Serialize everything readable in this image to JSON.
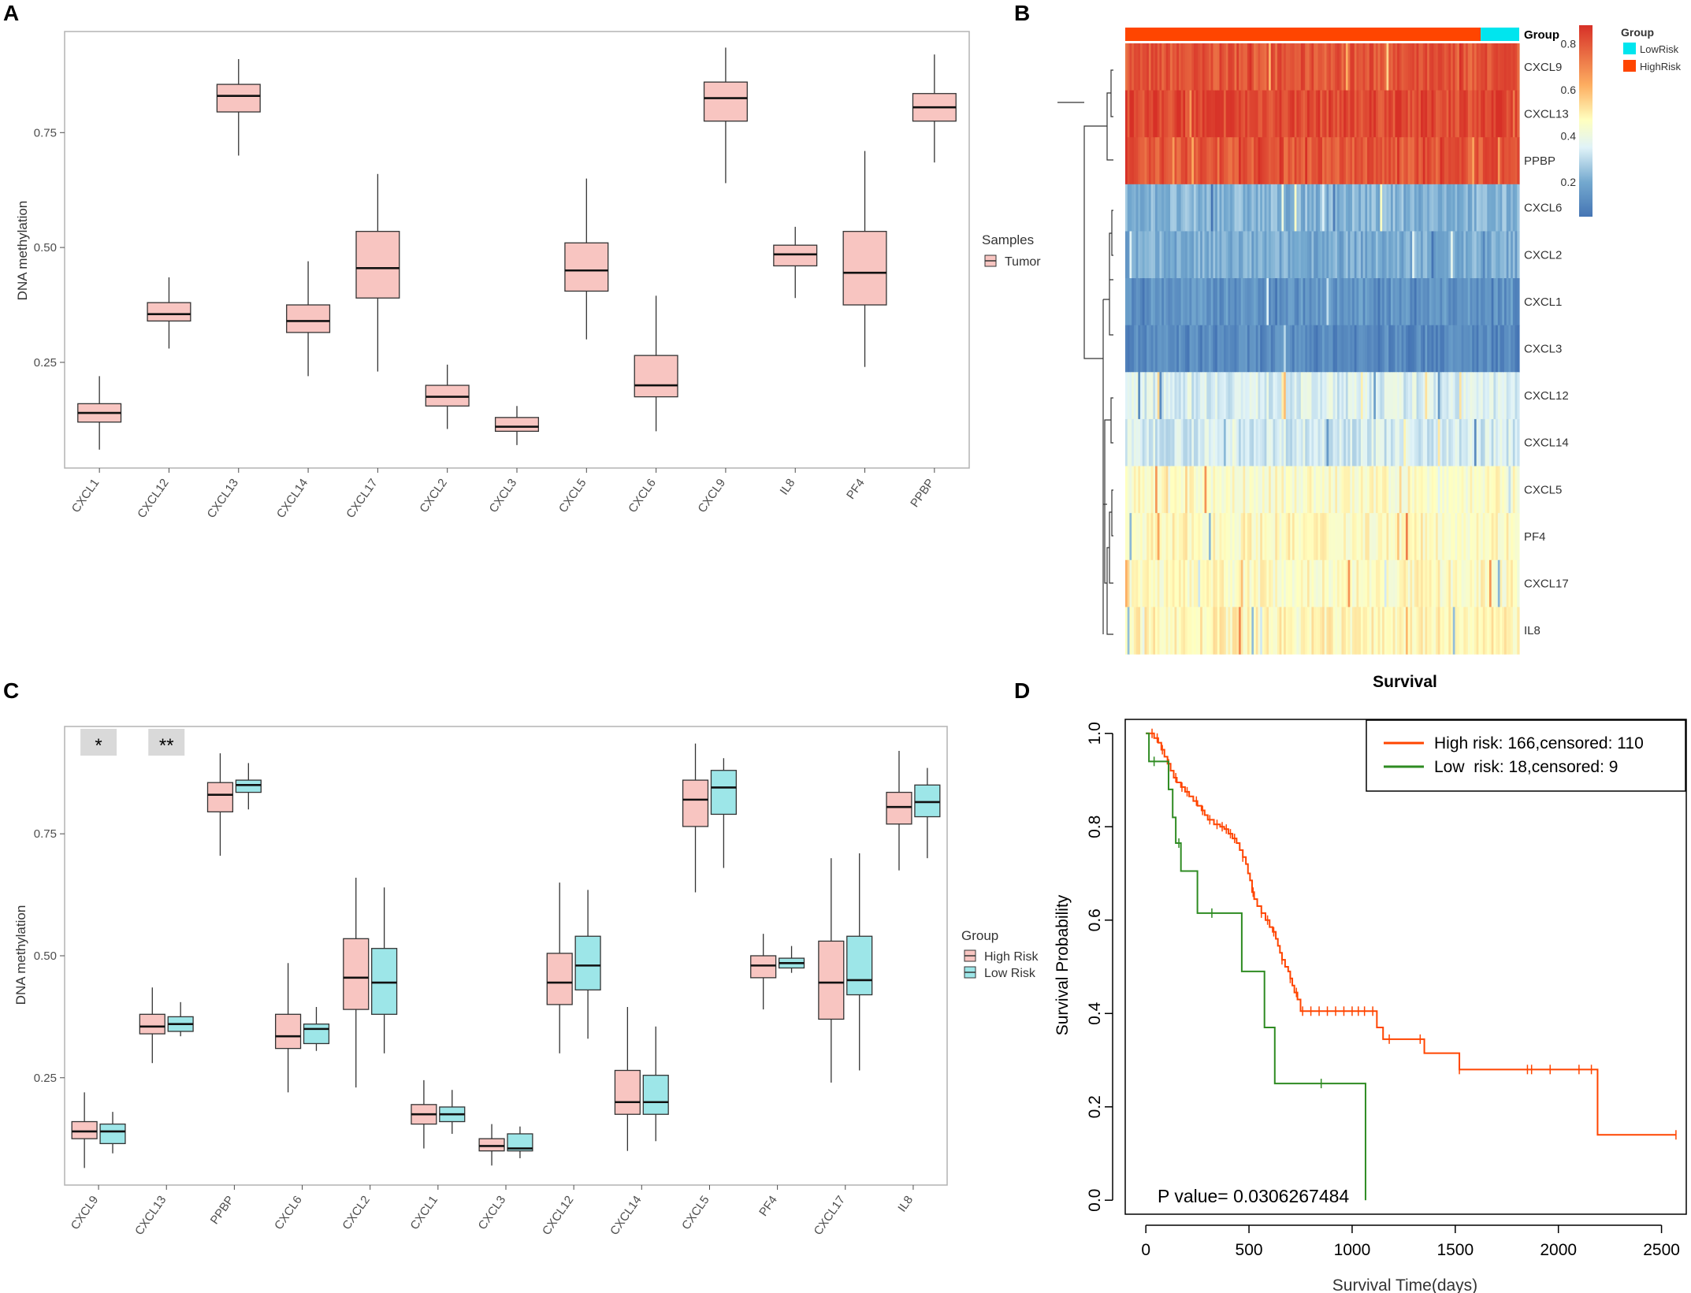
{
  "panels": {
    "A": {
      "letter": "A",
      "chart_data": {
        "type": "boxplot",
        "ylabel": "DNA methylation",
        "ylim": [
          0.02,
          0.97
        ],
        "yticks": [
          0.25,
          0.5,
          0.75
        ],
        "ytick_labels": [
          "0.25",
          "0.50",
          "0.75"
        ],
        "categories": [
          "CXCL1",
          "CXCL12",
          "CXCL13",
          "CXCL14",
          "CXCL17",
          "CXCL2",
          "CXCL3",
          "CXCL5",
          "CXCL6",
          "CXCL9",
          "IL8",
          "PF4",
          "PPBP"
        ],
        "series": [
          {
            "name": "Tumor",
            "color": "#f8c5c1",
            "boxes": [
              {
                "min": 0.06,
                "q1": 0.12,
                "median": 0.14,
                "q3": 0.16,
                "max": 0.22
              },
              {
                "min": 0.28,
                "q1": 0.34,
                "median": 0.355,
                "q3": 0.38,
                "max": 0.435
              },
              {
                "min": 0.7,
                "q1": 0.795,
                "median": 0.83,
                "q3": 0.855,
                "max": 0.91
              },
              {
                "min": 0.22,
                "q1": 0.315,
                "median": 0.34,
                "q3": 0.375,
                "max": 0.47
              },
              {
                "min": 0.23,
                "q1": 0.39,
                "median": 0.455,
                "q3": 0.535,
                "max": 0.66
              },
              {
                "min": 0.105,
                "q1": 0.155,
                "median": 0.175,
                "q3": 0.2,
                "max": 0.245
              },
              {
                "min": 0.07,
                "q1": 0.1,
                "median": 0.11,
                "q3": 0.13,
                "max": 0.155
              },
              {
                "min": 0.3,
                "q1": 0.405,
                "median": 0.45,
                "q3": 0.51,
                "max": 0.65
              },
              {
                "min": 0.1,
                "q1": 0.175,
                "median": 0.2,
                "q3": 0.265,
                "max": 0.395
              },
              {
                "min": 0.64,
                "q1": 0.775,
                "median": 0.825,
                "q3": 0.86,
                "max": 0.935
              },
              {
                "min": 0.39,
                "q1": 0.46,
                "median": 0.485,
                "q3": 0.505,
                "max": 0.545
              },
              {
                "min": 0.24,
                "q1": 0.375,
                "median": 0.445,
                "q3": 0.535,
                "max": 0.71
              },
              {
                "min": 0.685,
                "q1": 0.775,
                "median": 0.805,
                "q3": 0.835,
                "max": 0.92
              }
            ]
          }
        ],
        "legend": {
          "title": "Samples",
          "items": [
            "Tumor"
          ],
          "position": "right"
        }
      }
    },
    "B": {
      "letter": "B",
      "chart_data": {
        "type": "heatmap",
        "title": "",
        "rows": [
          "CXCL9",
          "CXCL13",
          "PPBP",
          "CXCL6",
          "CXCL2",
          "CXCL1",
          "CXCL3",
          "CXCL12",
          "CXCL14",
          "CXCL5",
          "PF4",
          "CXCL17",
          "IL8"
        ],
        "row_mean_values": [
          0.8,
          0.83,
          0.8,
          0.22,
          0.2,
          0.14,
          0.11,
          0.35,
          0.34,
          0.45,
          0.47,
          0.46,
          0.48
        ],
        "annotation": {
          "name": "Group",
          "segments": [
            {
              "label": "HighRisk",
              "count": 166
            },
            {
              "label": "LowRisk",
              "count": 18
            }
          ]
        },
        "colorbar": {
          "ticks": [
            "0.8",
            "0.6",
            "0.4",
            "0.2"
          ],
          "tick_values": [
            0.8,
            0.6,
            0.4,
            0.2
          ],
          "range": [
            0.05,
            0.88
          ]
        },
        "legend": {
          "title": "Group",
          "items": [
            "LowRisk",
            "HighRisk"
          ]
        },
        "colors": {
          "low": "#4575b4",
          "mid": "#ffffbf",
          "high": "#d73027",
          "HighRisk": "#ff4500",
          "LowRisk": "#00e5ee"
        }
      }
    },
    "C": {
      "letter": "C",
      "chart_data": {
        "type": "boxplot",
        "ylabel": "DNA methylation",
        "ylim": [
          0.03,
          0.97
        ],
        "yticks": [
          0.25,
          0.5,
          0.75
        ],
        "ytick_labels": [
          "0.25",
          "0.50",
          "0.75"
        ],
        "categories": [
          "CXCL9",
          "CXCL13",
          "PPBP",
          "CXCL6",
          "CXCL2",
          "CXCL1",
          "CXCL3",
          "CXCL12",
          "CXCL14",
          "CXCL5",
          "PF4",
          "CXCL17",
          "IL8"
        ],
        "significance": [
          "*",
          "**",
          "",
          "",
          "",
          "",
          "",
          "",
          "",
          "",
          "",
          "",
          ""
        ],
        "series": [
          {
            "name": "High Risk",
            "color": "#f8c5c1",
            "boxes": [
              {
                "min": 0.065,
                "q1": 0.125,
                "median": 0.14,
                "q3": 0.16,
                "max": 0.22
              },
              {
                "min": 0.28,
                "q1": 0.34,
                "median": 0.355,
                "q3": 0.38,
                "max": 0.435
              },
              {
                "min": 0.705,
                "q1": 0.795,
                "median": 0.83,
                "q3": 0.855,
                "max": 0.915
              },
              {
                "min": 0.22,
                "q1": 0.31,
                "median": 0.335,
                "q3": 0.38,
                "max": 0.485
              },
              {
                "min": 0.23,
                "q1": 0.39,
                "median": 0.455,
                "q3": 0.535,
                "max": 0.66
              },
              {
                "min": 0.105,
                "q1": 0.155,
                "median": 0.175,
                "q3": 0.195,
                "max": 0.245
              },
              {
                "min": 0.07,
                "q1": 0.1,
                "median": 0.11,
                "q3": 0.125,
                "max": 0.155
              },
              {
                "min": 0.3,
                "q1": 0.4,
                "median": 0.445,
                "q3": 0.505,
                "max": 0.65
              },
              {
                "min": 0.1,
                "q1": 0.175,
                "median": 0.2,
                "q3": 0.265,
                "max": 0.395
              },
              {
                "min": 0.63,
                "q1": 0.765,
                "median": 0.82,
                "q3": 0.86,
                "max": 0.935
              },
              {
                "min": 0.39,
                "q1": 0.455,
                "median": 0.48,
                "q3": 0.5,
                "max": 0.545
              },
              {
                "min": 0.24,
                "q1": 0.37,
                "median": 0.445,
                "q3": 0.53,
                "max": 0.7
              },
              {
                "min": 0.675,
                "q1": 0.77,
                "median": 0.805,
                "q3": 0.835,
                "max": 0.92
              }
            ]
          },
          {
            "name": "Low Risk",
            "color": "#9de6e8",
            "boxes": [
              {
                "min": 0.095,
                "q1": 0.115,
                "median": 0.14,
                "q3": 0.155,
                "max": 0.18
              },
              {
                "min": 0.335,
                "q1": 0.345,
                "median": 0.36,
                "q3": 0.375,
                "max": 0.405
              },
              {
                "min": 0.8,
                "q1": 0.835,
                "median": 0.85,
                "q3": 0.86,
                "max": 0.895
              },
              {
                "min": 0.305,
                "q1": 0.32,
                "median": 0.35,
                "q3": 0.36,
                "max": 0.395
              },
              {
                "min": 0.3,
                "q1": 0.38,
                "median": 0.445,
                "q3": 0.515,
                "max": 0.64
              },
              {
                "min": 0.135,
                "q1": 0.16,
                "median": 0.175,
                "q3": 0.19,
                "max": 0.225
              },
              {
                "min": 0.085,
                "q1": 0.1,
                "median": 0.105,
                "q3": 0.135,
                "max": 0.15
              },
              {
                "min": 0.33,
                "q1": 0.43,
                "median": 0.48,
                "q3": 0.54,
                "max": 0.635
              },
              {
                "min": 0.12,
                "q1": 0.175,
                "median": 0.2,
                "q3": 0.255,
                "max": 0.355
              },
              {
                "min": 0.68,
                "q1": 0.79,
                "median": 0.845,
                "q3": 0.88,
                "max": 0.905
              },
              {
                "min": 0.465,
                "q1": 0.475,
                "median": 0.485,
                "q3": 0.495,
                "max": 0.52
              },
              {
                "min": 0.265,
                "q1": 0.42,
                "median": 0.45,
                "q3": 0.54,
                "max": 0.71
              },
              {
                "min": 0.7,
                "q1": 0.785,
                "median": 0.815,
                "q3": 0.85,
                "max": 0.885
              }
            ]
          }
        ],
        "legend": {
          "title": "Group",
          "items": [
            "High Risk",
            "Low Risk"
          ],
          "position": "right"
        }
      }
    },
    "D": {
      "letter": "D",
      "chart_data": {
        "type": "line",
        "subtype": "kaplan-meier",
        "title": "Survival",
        "xlabel": "Survival Time(days)",
        "ylabel": "Survival Probability",
        "xlim": [
          -100,
          2620
        ],
        "ylim": [
          -0.03,
          1.03
        ],
        "xticks": [
          0,
          500,
          1000,
          1500,
          2000,
          2500
        ],
        "yticks": [
          0.0,
          0.2,
          0.4,
          0.6,
          0.8,
          1.0
        ],
        "ytick_labels": [
          "0.0",
          "0.2",
          "0.4",
          "0.6",
          "0.8",
          "1.0"
        ],
        "annotation": "P value= 0.0306267484",
        "series": [
          {
            "name": "High risk",
            "legend_label": "High risk: 166,censored: 110",
            "color": "#ff4500",
            "steps": [
              [
                0,
                1.0
              ],
              [
                40,
                0.99
              ],
              [
                60,
                0.98
              ],
              [
                75,
                0.965
              ],
              [
                90,
                0.95
              ],
              [
                105,
                0.935
              ],
              [
                120,
                0.92
              ],
              [
                135,
                0.905
              ],
              [
                150,
                0.895
              ],
              [
                170,
                0.885
              ],
              [
                190,
                0.875
              ],
              [
                210,
                0.865
              ],
              [
                230,
                0.855
              ],
              [
                250,
                0.845
              ],
              [
                270,
                0.835
              ],
              [
                285,
                0.825
              ],
              [
                300,
                0.815
              ],
              [
                330,
                0.805
              ],
              [
                360,
                0.8
              ],
              [
                380,
                0.795
              ],
              [
                400,
                0.785
              ],
              [
                420,
                0.775
              ],
              [
                440,
                0.765
              ],
              [
                455,
                0.75
              ],
              [
                470,
                0.735
              ],
              [
                485,
                0.72
              ],
              [
                495,
                0.7
              ],
              [
                505,
                0.685
              ],
              [
                515,
                0.66
              ],
              [
                525,
                0.645
              ],
              [
                540,
                0.63
              ],
              [
                560,
                0.615
              ],
              [
                580,
                0.6
              ],
              [
                600,
                0.585
              ],
              [
                615,
                0.575
              ],
              [
                630,
                0.56
              ],
              [
                640,
                0.545
              ],
              [
                650,
                0.53
              ],
              [
                660,
                0.515
              ],
              [
                675,
                0.5
              ],
              [
                690,
                0.49
              ],
              [
                700,
                0.475
              ],
              [
                710,
                0.46
              ],
              [
                720,
                0.445
              ],
              [
                735,
                0.43
              ],
              [
                750,
                0.405
              ],
              [
                1120,
                0.37
              ],
              [
                1150,
                0.345
              ],
              [
                1350,
                0.315
              ],
              [
                1520,
                0.28
              ],
              [
                2190,
                0.14
              ],
              [
                2570,
                0.14
              ]
            ],
            "censor_times": [
              30,
              55,
              80,
              110,
              145,
              175,
              200,
              245,
              275,
              310,
              345,
              370,
              390,
              410,
              430,
              470,
              520,
              560,
              590,
              620,
              660,
              700,
              730,
              760,
              800,
              840,
              880,
              920,
              960,
              1000,
              1030,
              1060,
              1100,
              1180,
              1330,
              1520,
              1850,
              1870,
              1960,
              2100,
              2160,
              2570
            ]
          },
          {
            "name": "Low risk",
            "legend_label": "Low  risk: 18,censored: 9",
            "color": "#2e8b22",
            "steps": [
              [
                0,
                1.0
              ],
              [
                15,
                0.94
              ],
              [
                100,
                0.94
              ],
              [
                110,
                0.88
              ],
              [
                130,
                0.82
              ],
              [
                145,
                0.765
              ],
              [
                170,
                0.705
              ],
              [
                240,
                0.705
              ],
              [
                250,
                0.615
              ],
              [
                455,
                0.615
              ],
              [
                465,
                0.49
              ],
              [
                565,
                0.49
              ],
              [
                575,
                0.37
              ],
              [
                615,
                0.37
              ],
              [
                625,
                0.25
              ],
              [
                1060,
                0.25
              ],
              [
                1065,
                0.0
              ]
            ],
            "censor_times": [
              40,
              160,
              320,
              850
            ]
          }
        ]
      }
    }
  }
}
